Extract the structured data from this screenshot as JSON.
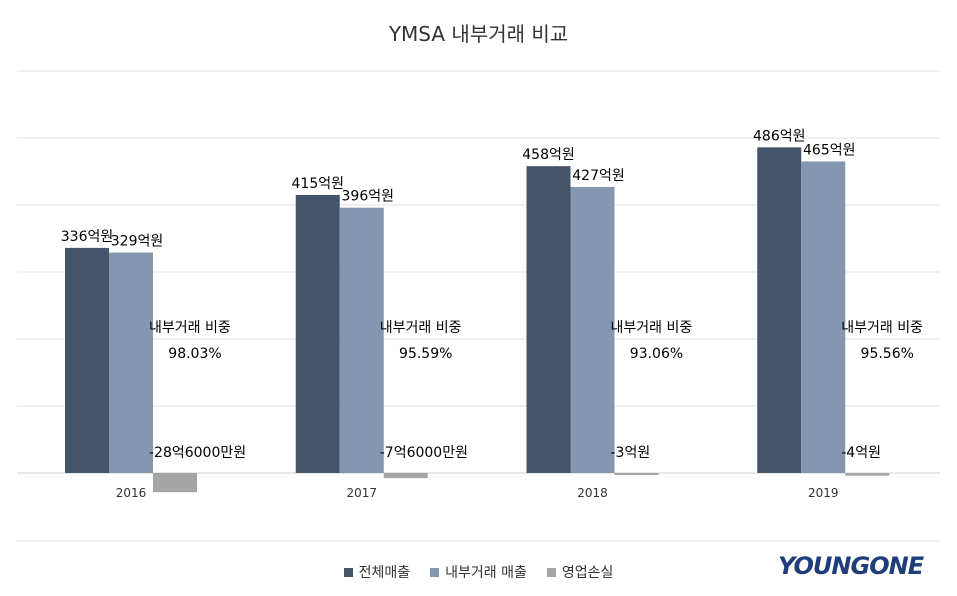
{
  "chart_data": {
    "type": "bar",
    "title": "YMSA 내부거래 비교",
    "categories": [
      "2016",
      "2017",
      "2018",
      "2019"
    ],
    "series": [
      {
        "name": "전체매출",
        "color": "#44546a",
        "values": [
          336,
          415,
          458,
          486
        ],
        "labels": [
          "336억원",
          "415억원",
          "458억원",
          "486억원"
        ]
      },
      {
        "name": "내부거래 매출",
        "color": "#8497b0",
        "values": [
          329,
          396,
          427,
          465
        ],
        "labels": [
          "329억원",
          "396억원",
          "427억원",
          "465억원"
        ]
      },
      {
        "name": "영업손실",
        "color": "#a5a5a5",
        "values": [
          -28.6,
          -7.6,
          -3,
          -4
        ],
        "labels": [
          "-28억6000만원",
          "-7억6000만원",
          "-3억원",
          "-4억원"
        ]
      }
    ],
    "annotations": {
      "ratio_label": "내부거래 비중",
      "ratios": [
        "98.03%",
        "95.59%",
        "93.06%",
        "95.56%"
      ]
    },
    "ylim": [
      -50,
      600
    ],
    "grid": true,
    "legend": "bottom",
    "logo_text": "YOUNGONE"
  }
}
